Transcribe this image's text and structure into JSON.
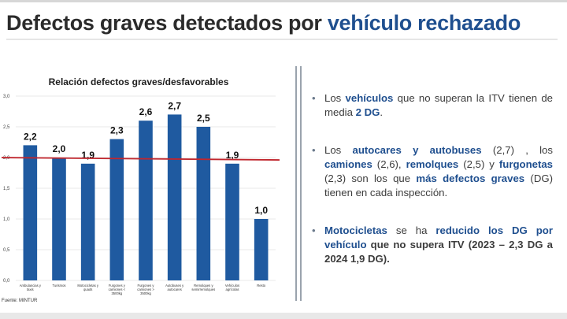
{
  "slide": {
    "title_part1": "Defectos graves detectados por ",
    "title_part2": "vehículo rechazado",
    "source": "Fuente: MINTUR",
    "accent_color": "#1f4f8f",
    "bullets": [
      {
        "runs": [
          {
            "text": "Los ",
            "style": "plain"
          },
          {
            "text": "vehículos",
            "style": "kw"
          },
          {
            "text": " que no superan la ITV tienen de media ",
            "style": "plain"
          },
          {
            "text": "2 DG",
            "style": "kw"
          },
          {
            "text": ".",
            "style": "plain"
          }
        ]
      },
      {
        "runs": [
          {
            "text": "Los ",
            "style": "plain"
          },
          {
            "text": "autocares y autobuses",
            "style": "kw"
          },
          {
            "text": " (2,7) , los ",
            "style": "plain"
          },
          {
            "text": "camiones",
            "style": "kw"
          },
          {
            "text": " (2,6), ",
            "style": "plain"
          },
          {
            "text": "remolques",
            "style": "kw"
          },
          {
            "text": " (2,5) y ",
            "style": "plain"
          },
          {
            "text": "furgonetas",
            "style": "kw"
          },
          {
            "text": " (2,3)  son los que ",
            "style": "plain"
          },
          {
            "text": "más defectos graves",
            "style": "kw"
          },
          {
            "text": " (DG) tienen en cada inspección.",
            "style": "plain"
          }
        ]
      },
      {
        "runs": [
          {
            "text": "Motocicletas",
            "style": "kw"
          },
          {
            "text": " se ha ",
            "style": "plain"
          },
          {
            "text": "reducido los DG por vehículo",
            "style": "kw"
          },
          {
            "text": " que no supera ITV (2023 – 2,3 DG a 2024 1,9 DG).",
            "style": "bold"
          }
        ]
      }
    ]
  },
  "chart_data": {
    "type": "bar",
    "title": "Relación defectos graves/desfavorables",
    "categories": [
      [
        "Ambulancias y",
        "taxis"
      ],
      [
        "Turismos"
      ],
      [
        "Motocicletas y",
        "quads"
      ],
      [
        "Furgones y",
        "camiones <",
        "3500kg"
      ],
      [
        "Furgones y",
        "camiones >",
        "3500kg"
      ],
      [
        "Autobuses y",
        "autocares"
      ],
      [
        "Remolques y",
        "semirremolques"
      ],
      [
        "Vehículos",
        "agrícolas"
      ],
      [
        "Resto"
      ]
    ],
    "values": [
      2.2,
      2.0,
      1.9,
      2.3,
      2.6,
      2.7,
      2.5,
      1.9,
      1.0
    ],
    "data_labels": [
      "2,2",
      "2,0",
      "1,9",
      "2,3",
      "2,6",
      "2,7",
      "2,5",
      "1,9",
      "1,0"
    ],
    "ylim": [
      0,
      3.0
    ],
    "yticks": [
      0,
      0.5,
      1.0,
      1.5,
      2.0,
      2.5,
      3.0
    ],
    "ytick_labels": [
      "0,0",
      "0,5",
      "1,0",
      "1,5",
      "2,0",
      "2,5",
      "3,0"
    ],
    "average_line": 1.98,
    "grid": true,
    "bar_color": "#1f5aa0",
    "average_line_color": "#c0262d"
  }
}
